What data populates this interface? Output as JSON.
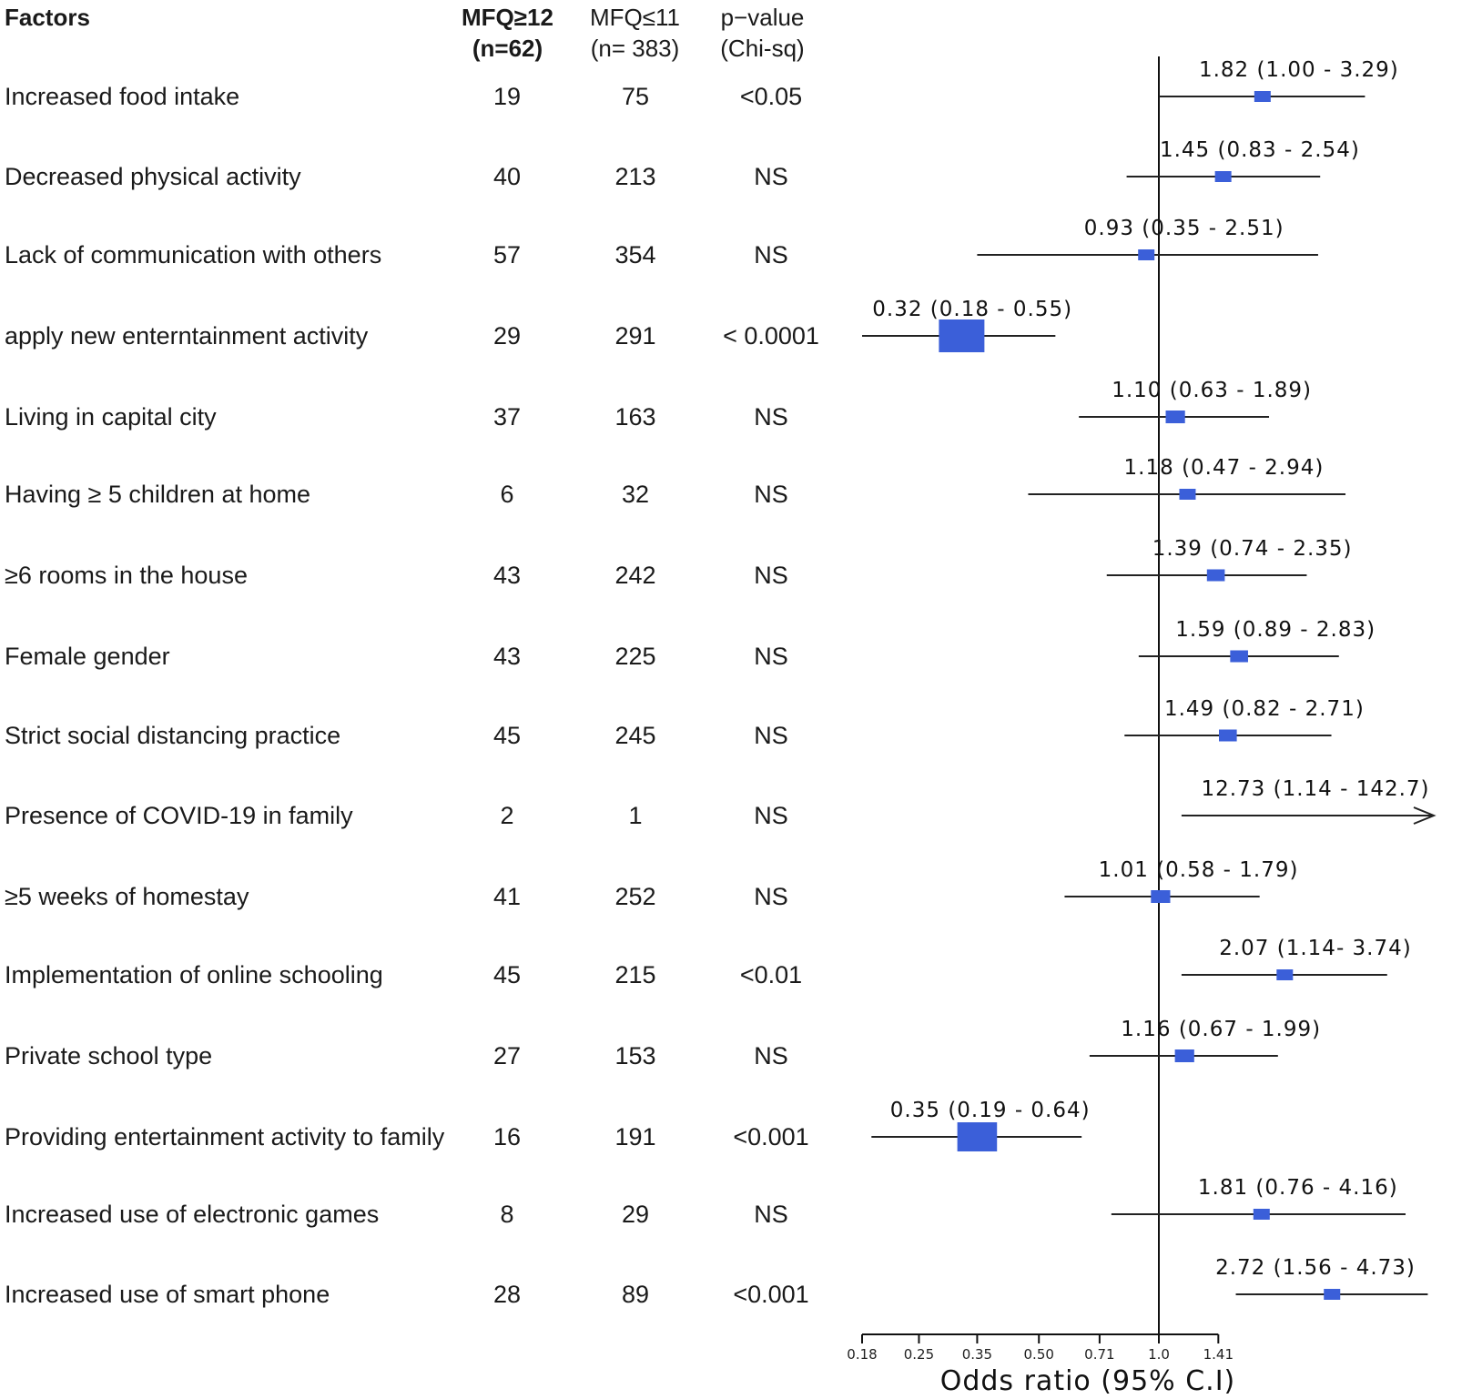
{
  "headers": {
    "factors": "Factors",
    "case_line1": "MFQ≥12",
    "case_line2": "(n=62)",
    "ctrl_line1": "MFQ≤11",
    "ctrl_line2": "(n= 383)",
    "p_line1": "p−value",
    "p_line2": "(Chi-sq)"
  },
  "rows": [
    {
      "factor": "Increased food intake",
      "cases": "19",
      "controls": "75",
      "p": "<0.05"
    },
    {
      "factor": "Decreased physical activity",
      "cases": "40",
      "controls": "213",
      "p": "NS"
    },
    {
      "factor": "Lack of communication with others",
      "cases": "57",
      "controls": "354",
      "p": "NS"
    },
    {
      "factor": "apply new enterntainment activity",
      "cases": "29",
      "controls": "291",
      "p": "< 0.0001"
    },
    {
      "factor": "Living in capital city",
      "cases": "37",
      "controls": "163",
      "p": "NS"
    },
    {
      "factor": "Having ≥ 5 children at home",
      "cases": "6",
      "controls": "32",
      "p": "NS"
    },
    {
      "factor": "≥6 rooms in the house",
      "cases": "43",
      "controls": "242",
      "p": "NS"
    },
    {
      "factor": "Female gender",
      "cases": "43",
      "controls": "225",
      "p": "NS"
    },
    {
      "factor": "Strict social distancing practice",
      "cases": "45",
      "controls": "245",
      "p": "NS"
    },
    {
      "factor": "Presence of COVID-19 in family",
      "cases": "2",
      "controls": "1",
      "p": "NS"
    },
    {
      "factor": "≥5 weeks of homestay",
      "cases": "41",
      "controls": "252",
      "p": "NS"
    },
    {
      "factor": "Implementation of online schooling",
      "cases": "45",
      "controls": "215",
      "p": "<0.01"
    },
    {
      "factor": "Private school type",
      "cases": "27",
      "controls": "153",
      "p": "NS"
    },
    {
      "factor": "Providing entertainment activity to family",
      "cases": "16",
      "controls": "191",
      "p": "<0.001"
    },
    {
      "factor": "Increased use of electronic games",
      "cases": "8",
      "controls": "29",
      "p": "NS"
    },
    {
      "factor": "Increased use of smart phone",
      "cases": "28",
      "controls": "89",
      "p": "<0.001"
    }
  ],
  "chart_data": {
    "type": "forest",
    "xlabel": "Odds ratio (95% C.I)",
    "xscale": "log",
    "xlim": [
      0.18,
      1.41
    ],
    "reference_line": 1.0,
    "ticks": [
      0.18,
      0.25,
      0.35,
      0.5,
      0.71,
      1.0,
      1.41
    ],
    "tick_labels": [
      "0.18",
      "0.25",
      "0.35",
      "0.50",
      "0.71",
      "1.0",
      "1.41"
    ],
    "marker_color": "#3b5fd9",
    "series": [
      {
        "or": 1.82,
        "lo": 1.0,
        "hi": 3.29,
        "label": "1.82 (1.00 - 3.29)",
        "weight": 1
      },
      {
        "or": 1.45,
        "lo": 0.83,
        "hi": 2.54,
        "label": "1.45 (0.83 - 2.54)",
        "weight": 1
      },
      {
        "or": 0.93,
        "lo": 0.35,
        "hi": 2.51,
        "label": "0.93 (0.35 - 2.51)",
        "weight": 1
      },
      {
        "or": 0.32,
        "lo": 0.18,
        "hi": 0.55,
        "label": "0.32 (0.18 - 0.55)",
        "weight": 3
      },
      {
        "or": 1.1,
        "lo": 0.63,
        "hi": 1.89,
        "label": "1.10 (0.63 - 1.89)",
        "weight": 1.2
      },
      {
        "or": 1.18,
        "lo": 0.47,
        "hi": 2.94,
        "label": "1.18 (0.47 - 2.94)",
        "weight": 1
      },
      {
        "or": 1.39,
        "lo": 0.74,
        "hi": 2.35,
        "label": "1.39 (0.74 - 2.35)",
        "weight": 1.1
      },
      {
        "or": 1.59,
        "lo": 0.89,
        "hi": 2.83,
        "label": "1.59 (0.89 - 2.83)",
        "weight": 1.1
      },
      {
        "or": 1.49,
        "lo": 0.82,
        "hi": 2.71,
        "label": "1.49 (0.82 - 2.71)",
        "weight": 1.1
      },
      {
        "or": 12.73,
        "lo": 1.14,
        "hi": 142.7,
        "label": "12.73 (1.14 - 142.7)",
        "weight": 0,
        "arrow": true
      },
      {
        "or": 1.01,
        "lo": 0.58,
        "hi": 1.79,
        "label": "1.01 (0.58 - 1.79)",
        "weight": 1.2
      },
      {
        "or": 2.07,
        "lo": 1.14,
        "hi": 3.74,
        "label": "2.07 (1.14- 3.74)",
        "weight": 1
      },
      {
        "or": 1.16,
        "lo": 0.67,
        "hi": 1.99,
        "label": "1.16 (0.67 - 1.99)",
        "weight": 1.2
      },
      {
        "or": 0.35,
        "lo": 0.19,
        "hi": 0.64,
        "label": "0.35 (0.19 - 0.64)",
        "weight": 2.6
      },
      {
        "or": 1.81,
        "lo": 0.76,
        "hi": 4.16,
        "label": "1.81 (0.76 - 4.16)",
        "weight": 1
      },
      {
        "or": 2.72,
        "lo": 1.56,
        "hi": 4.73,
        "label": "2.72 (1.56 - 4.73)",
        "weight": 1
      }
    ]
  }
}
